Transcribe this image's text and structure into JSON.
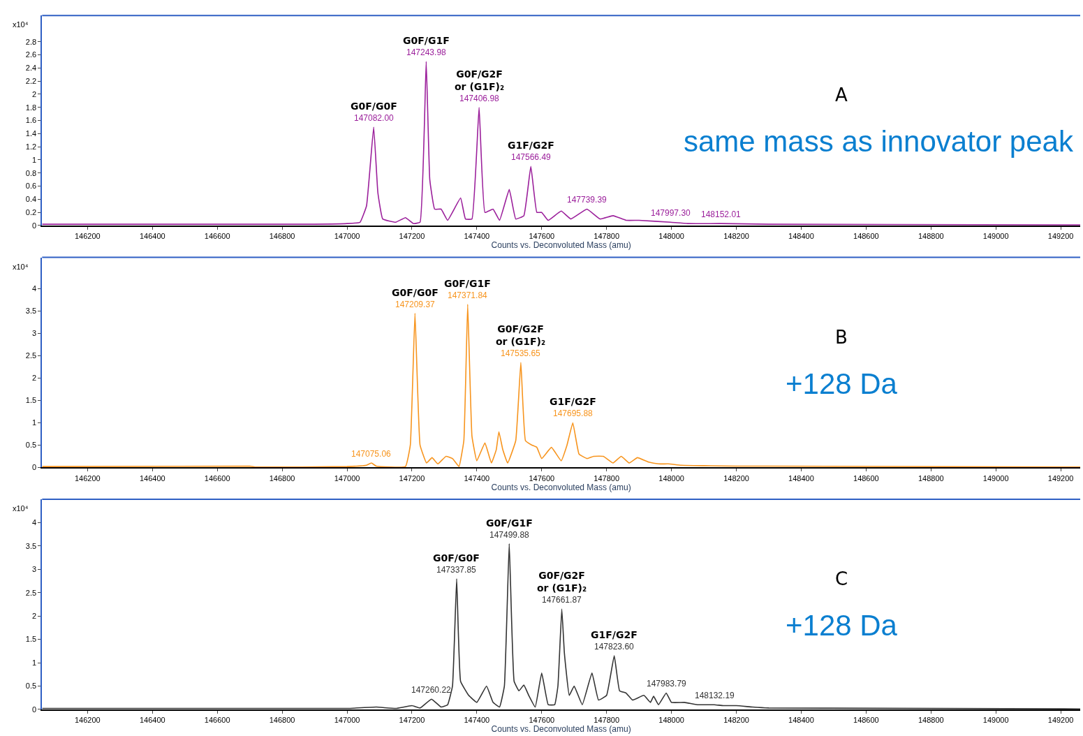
{
  "chart_data": [
    {
      "type": "line",
      "xlabel": "Counts vs. Deconvoluted Mass (amu)",
      "ylabel": "x10⁴",
      "xlim": [
        146060,
        149260
      ],
      "ylim": [
        0,
        3.2
      ],
      "xticks": [
        146200,
        146400,
        146600,
        146800,
        147000,
        147200,
        147400,
        147600,
        147800,
        148000,
        148200,
        148400,
        148600,
        148800,
        149000,
        149200
      ],
      "yticks": [
        0,
        0.2,
        0.4,
        0.6,
        0.8,
        1,
        1.2,
        1.4,
        1.6,
        1.8,
        2,
        2.2,
        2.4,
        2.6,
        2.8
      ],
      "series": [
        {
          "color": "#9b1f9b",
          "x": [
            146060,
            146900,
            147000,
            147040,
            147060,
            147082,
            147095,
            147110,
            147150,
            147180,
            147205,
            147225,
            147243.98,
            147255,
            147270,
            147290,
            147310,
            147350,
            147365,
            147385,
            147406.98,
            147425,
            147450,
            147470,
            147500,
            147520,
            147545,
            147566.49,
            147585,
            147600,
            147620,
            147660,
            147690,
            147739.39,
            147780,
            147820,
            147860,
            147900,
            147997.3,
            148050,
            148152.01,
            148300,
            149260
          ],
          "values": [
            0.02,
            0.02,
            0.03,
            0.05,
            0.3,
            1.5,
            0.5,
            0.1,
            0.05,
            0.12,
            0.03,
            0.05,
            2.5,
            0.7,
            0.25,
            0.25,
            0.08,
            0.42,
            0.1,
            0.1,
            1.8,
            0.2,
            0.25,
            0.08,
            0.55,
            0.1,
            0.15,
            0.9,
            0.2,
            0.2,
            0.08,
            0.22,
            0.1,
            0.25,
            0.1,
            0.15,
            0.08,
            0.08,
            0.05,
            0.03,
            0.03,
            0.02,
            0.01
          ]
        }
      ],
      "annotations": [
        {
          "text": "147082.00",
          "x": 147082,
          "y": 1.5
        },
        {
          "text": "G0F/G0F",
          "x": 147082,
          "y": 1.5
        },
        {
          "text": "147243.98",
          "x": 147243.98,
          "y": 2.5
        },
        {
          "text": "G0F/G1F",
          "x": 147243.98,
          "y": 2.5
        },
        {
          "text": "147406.98",
          "x": 147406.98,
          "y": 1.8
        },
        {
          "text": "G0F/G2F\nor (G1F)₂",
          "x": 147406.98,
          "y": 1.8
        },
        {
          "text": "147566.49",
          "x": 147566.49,
          "y": 0.9
        },
        {
          "text": "G1F/G2F",
          "x": 147566.49,
          "y": 0.9
        },
        {
          "text": "147739.39",
          "x": 147739.39,
          "y": 0.25
        },
        {
          "text": "147997.30",
          "x": 147997.3,
          "y": 0.05
        },
        {
          "text": "148152.01",
          "x": 148152.01,
          "y": 0.03
        },
        "A",
        "same mass as innovator peak"
      ]
    },
    {
      "type": "line",
      "xlabel": "Counts vs. Deconvoluted Mass (amu)",
      "ylabel": "x10⁴",
      "xlim": [
        146060,
        149260
      ],
      "ylim": [
        0,
        4.7
      ],
      "xticks": [
        146200,
        146400,
        146600,
        146800,
        147000,
        147200,
        147400,
        147600,
        147800,
        148000,
        148200,
        148400,
        148600,
        148800,
        149000,
        149200
      ],
      "yticks": [
        0,
        0.5,
        1,
        1.5,
        2,
        2.5,
        3,
        3.5,
        4
      ],
      "series": [
        {
          "color": "#f7941d",
          "x": [
            146060,
            146700,
            146720,
            147000,
            147060,
            147075.06,
            147090,
            147180,
            147195,
            147209.37,
            147225,
            147245,
            147262,
            147280,
            147305,
            147325,
            147345,
            147360,
            147371.84,
            147385,
            147400,
            147425,
            147445,
            147460,
            147468,
            147480,
            147495,
            147520,
            147535.65,
            147550,
            147570,
            147585,
            147600,
            147630,
            147660,
            147678,
            147695.88,
            147715,
            147740,
            147760,
            147790,
            147820,
            147845,
            147870,
            147895,
            147930,
            147960,
            147990,
            148030,
            148100,
            148200,
            148300,
            149260
          ],
          "values": [
            0.02,
            0.03,
            0.01,
            0.02,
            0.05,
            0.1,
            0.03,
            0.02,
            0.5,
            3.45,
            0.5,
            0.1,
            0.22,
            0.08,
            0.25,
            0.2,
            0.02,
            0.6,
            3.65,
            0.7,
            0.15,
            0.55,
            0.1,
            0.4,
            0.8,
            0.4,
            0.1,
            0.6,
            2.35,
            0.6,
            0.5,
            0.45,
            0.2,
            0.45,
            0.15,
            0.5,
            1.0,
            0.3,
            0.2,
            0.25,
            0.25,
            0.1,
            0.25,
            0.1,
            0.22,
            0.12,
            0.08,
            0.08,
            0.05,
            0.04,
            0.03,
            0.03,
            0.01
          ]
        }
      ],
      "annotations": [
        {
          "text": "147075.06",
          "x": 147075.06,
          "y": 0.1
        },
        {
          "text": "147209.37",
          "x": 147209.37,
          "y": 3.45
        },
        {
          "text": "G0F/G0F",
          "x": 147209.37,
          "y": 3.45
        },
        {
          "text": "147371.84",
          "x": 147371.84,
          "y": 3.65
        },
        {
          "text": "G0F/G1F",
          "x": 147371.84,
          "y": 3.65
        },
        {
          "text": "147535.65",
          "x": 147535.65,
          "y": 2.35
        },
        {
          "text": "G0F/G2F\nor (G1F)₂",
          "x": 147535.65,
          "y": 2.35
        },
        {
          "text": "147695.88",
          "x": 147695.88,
          "y": 1.0
        },
        {
          "text": "G1F/G2F",
          "x": 147695.88,
          "y": 1.0
        },
        "B",
        "+128 Da"
      ]
    },
    {
      "type": "line",
      "xlabel": "Counts vs. Deconvoluted Mass (amu)",
      "ylabel": "x10⁴",
      "xlim": [
        146060,
        149260
      ],
      "ylim": [
        0,
        4.5
      ],
      "xticks": [
        146200,
        146400,
        146600,
        146800,
        147000,
        147200,
        147400,
        147600,
        147800,
        148000,
        148200,
        148400,
        148600,
        148800,
        149000,
        149200
      ],
      "yticks": [
        0,
        0.5,
        1,
        1.5,
        2,
        2.5,
        3,
        3.5,
        4
      ],
      "series": [
        {
          "color": "#333333",
          "x": [
            146060,
            147000,
            147090,
            147150,
            147200,
            147225,
            147260.22,
            147290,
            147310,
            147325,
            147337.85,
            147350,
            147375,
            147400,
            147430,
            147450,
            147470,
            147485,
            147499.88,
            147515,
            147530,
            147545,
            147560,
            147580,
            147600,
            147620,
            147640,
            147650,
            147661.87,
            147670,
            147685,
            147700,
            147725,
            147755,
            147775,
            147800,
            147823.6,
            147840,
            147860,
            147880,
            147915,
            147935,
            147945,
            147960,
            147983.79,
            148000,
            148040,
            148080,
            148132.19,
            148160,
            148200,
            148250,
            148300,
            149260
          ],
          "values": [
            0.02,
            0.02,
            0.05,
            0.02,
            0.08,
            0.03,
            0.22,
            0.05,
            0.1,
            0.5,
            2.8,
            0.6,
            0.3,
            0.15,
            0.5,
            0.15,
            0.05,
            0.5,
            3.55,
            0.6,
            0.4,
            0.52,
            0.3,
            0.05,
            0.78,
            0.1,
            0.1,
            0.5,
            2.15,
            1.2,
            0.3,
            0.5,
            0.1,
            0.78,
            0.2,
            0.3,
            1.15,
            0.4,
            0.35,
            0.2,
            0.3,
            0.15,
            0.28,
            0.1,
            0.35,
            0.15,
            0.15,
            0.1,
            0.1,
            0.08,
            0.08,
            0.05,
            0.03,
            0.01
          ]
        }
      ],
      "annotations": [
        {
          "text": "147260.22",
          "x": 147260.22,
          "y": 0.22
        },
        {
          "text": "147337.85",
          "x": 147337.85,
          "y": 2.8
        },
        {
          "text": "G0F/G0F",
          "x": 147337.85,
          "y": 2.8
        },
        {
          "text": "147499.88",
          "x": 147499.88,
          "y": 3.55
        },
        {
          "text": "G0F/G1F",
          "x": 147499.88,
          "y": 3.55
        },
        {
          "text": "147661.87",
          "x": 147661.87,
          "y": 2.15
        },
        {
          "text": "G0F/G2F\nor (G1F)₂",
          "x": 147661.87,
          "y": 2.15
        },
        {
          "text": "147823.60",
          "x": 147823.6,
          "y": 1.15
        },
        {
          "text": "G1F/G2F",
          "x": 147823.6,
          "y": 1.15
        },
        {
          "text": "147983.79",
          "x": 147983.79,
          "y": 0.35
        },
        {
          "text": "148132.19",
          "x": 148132.19,
          "y": 0.1
        },
        "C",
        "+128 Da"
      ]
    }
  ]
}
